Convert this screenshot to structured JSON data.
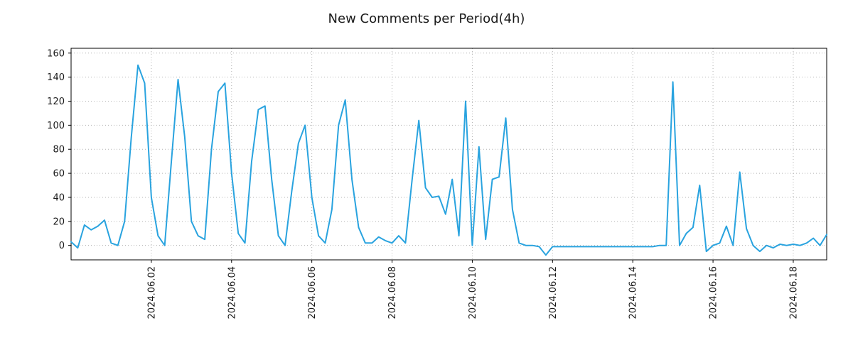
{
  "title": "New Comments per Period(4h)",
  "chart_data": {
    "type": "line",
    "title": "New Comments per Period(4h)",
    "interval_hours": 4,
    "ylabel": "",
    "xlabel": "",
    "grid": true,
    "line_color": "#29a3df",
    "grid_color": "#b3b3b3",
    "frame_color": "#000000",
    "ylim": [
      -12,
      164
    ],
    "y_ticks": [
      0,
      20,
      40,
      60,
      80,
      100,
      120,
      140,
      160
    ],
    "x_tick_labels": [
      "2024.06.02",
      "2024.06.04",
      "2024.06.06",
      "2024.06.08",
      "2024.06.10",
      "2024.06.12",
      "2024.06.14",
      "2024.06.16",
      "2024.06.18"
    ],
    "x_tick_indices": [
      12,
      24,
      36,
      48,
      60,
      72,
      84,
      96,
      108
    ],
    "values": [
      3,
      -2,
      17,
      13,
      16,
      21,
      2,
      0,
      20,
      90,
      150,
      135,
      40,
      8,
      0,
      70,
      138,
      90,
      20,
      8,
      5,
      80,
      128,
      135,
      60,
      10,
      2,
      70,
      113,
      116,
      55,
      8,
      0,
      45,
      85,
      100,
      40,
      8,
      2,
      30,
      100,
      121,
      55,
      15,
      2,
      2,
      7,
      4,
      2,
      8,
      2,
      55,
      104,
      48,
      40,
      41,
      26,
      55,
      8,
      120,
      0,
      82,
      5,
      55,
      57,
      106,
      30,
      2,
      0,
      0,
      -1,
      -8,
      -1,
      -1,
      -1,
      -1,
      -1,
      -1,
      -1,
      -1,
      -1,
      -1,
      -1,
      -1,
      -1,
      -1,
      -1,
      -1,
      0,
      0,
      136,
      0,
      10,
      15,
      50,
      -5,
      0,
      2,
      16,
      0,
      61,
      14,
      0,
      -5,
      0,
      -2,
      1,
      0,
      1,
      0,
      2,
      6,
      0,
      9
    ]
  }
}
